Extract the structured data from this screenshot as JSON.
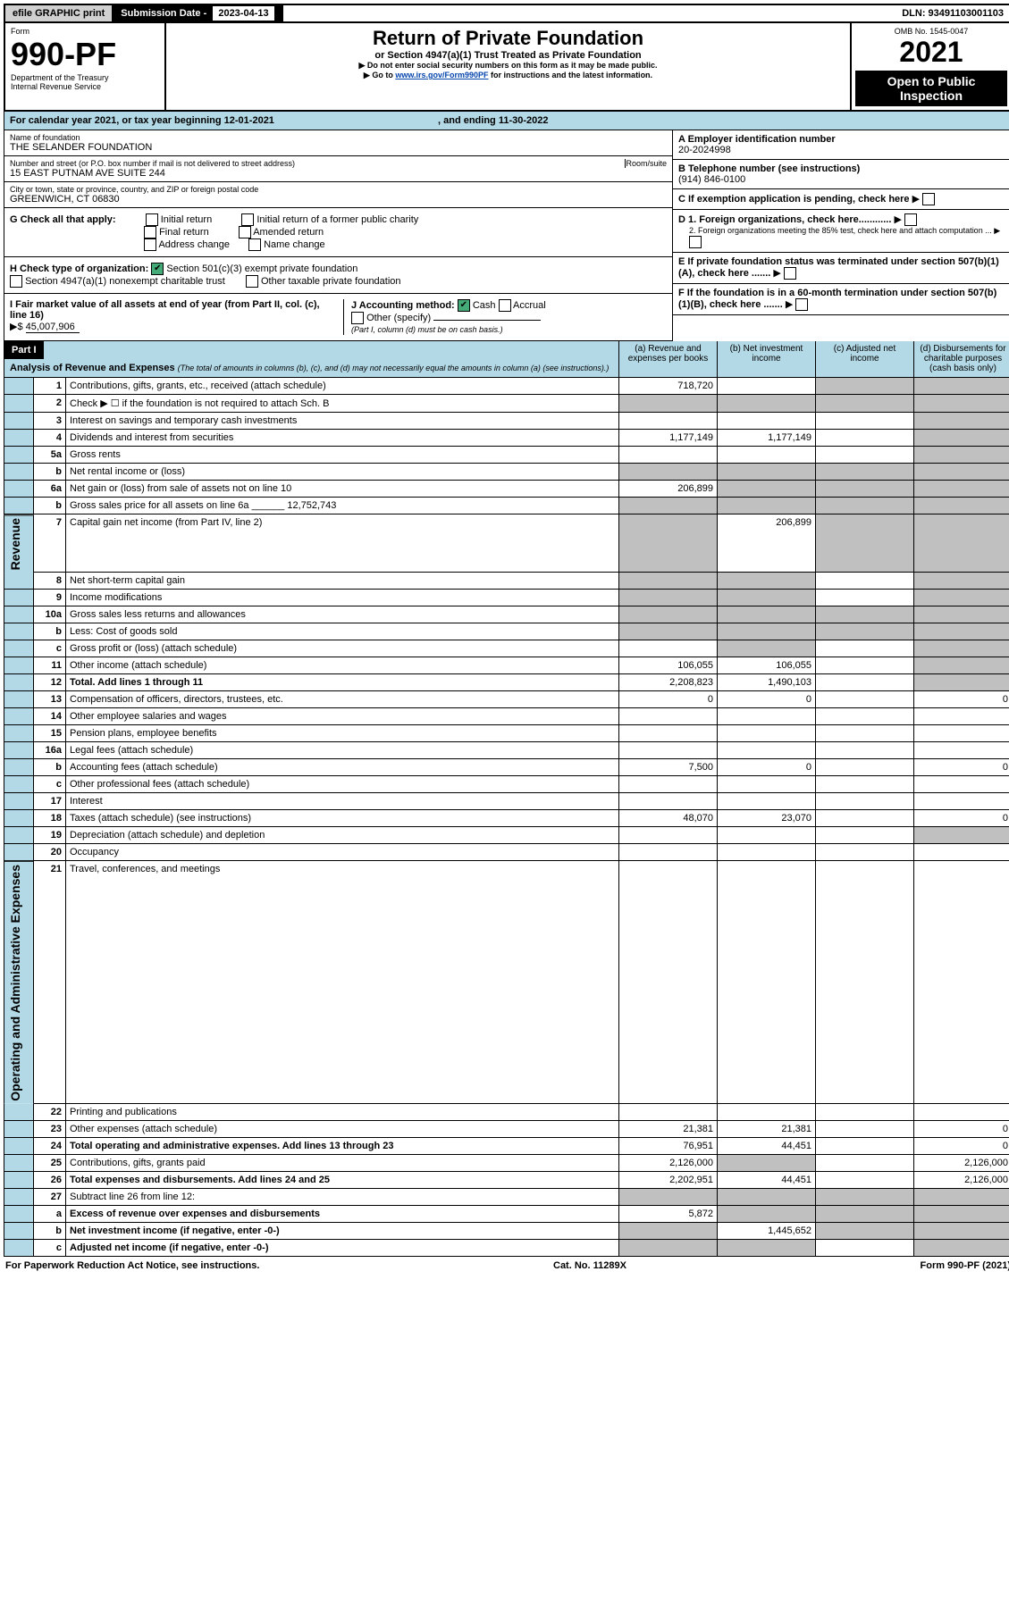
{
  "top_bar": {
    "efile": "efile GRAPHIC print",
    "sub_label": "Submission Date - ",
    "sub_date": "2023-04-13",
    "dln": "DLN: 93491103001103"
  },
  "header": {
    "form_word": "Form",
    "form_no": "990-PF",
    "dept1": "Department of the Treasury",
    "dept2": "Internal Revenue Service",
    "title": "Return of Private Foundation",
    "subtitle": "or Section 4947(a)(1) Trust Treated as Private Foundation",
    "note1": "▶ Do not enter social security numbers on this form as it may be made public.",
    "note2_pre": "▶ Go to ",
    "note2_link": "www.irs.gov/Form990PF",
    "note2_post": " for instructions and the latest information.",
    "omb": "OMB No. 1545-0047",
    "year": "2021",
    "open": "Open to Public Inspection"
  },
  "calendar": {
    "pre": "For calendar year 2021, or tax year beginning ",
    "begin": "12-01-2021",
    "mid": ", and ending ",
    "end": "11-30-2022"
  },
  "foundation": {
    "name_label": "Name of foundation",
    "name": "THE SELANDER FOUNDATION",
    "addr_label": "Number and street (or P.O. box number if mail is not delivered to street address)",
    "addr": "15 EAST PUTNAM AVE SUITE 244",
    "room_label": "Room/suite",
    "city_label": "City or town, state or province, country, and ZIP or foreign postal code",
    "city": "GREENWICH, CT  06830"
  },
  "rightcol": {
    "A_label": "A Employer identification number",
    "A_val": "20-2024998",
    "B_label": "B Telephone number (see instructions)",
    "B_val": "(914) 846-0100",
    "C_label": "C If exemption application is pending, check here",
    "D1": "D 1. Foreign organizations, check here............",
    "D2": "2. Foreign organizations meeting the 85% test, check here and attach computation ...",
    "E": "E If private foundation status was terminated under section 507(b)(1)(A), check here .......",
    "F": "F If the foundation is in a 60-month termination under section 507(b)(1)(B), check here ......."
  },
  "G": {
    "label": "G Check all that apply:",
    "opts": [
      "Initial return",
      "Final return",
      "Address change",
      "Initial return of a former public charity",
      "Amended return",
      "Name change"
    ]
  },
  "H": {
    "label": "H Check type of organization:",
    "o1": "Section 501(c)(3) exempt private foundation",
    "o2": "Section 4947(a)(1) nonexempt charitable trust",
    "o3": "Other taxable private foundation"
  },
  "I": {
    "label": "I Fair market value of all assets at end of year (from Part II, col. (c), line 16)",
    "arrow": "▶$",
    "val": "45,007,906"
  },
  "J": {
    "label": "J Accounting method:",
    "cash": "Cash",
    "accrual": "Accrual",
    "other": "Other (specify)",
    "note": "(Part I, column (d) must be on cash basis.)"
  },
  "partI": {
    "num": "Part I",
    "title": "Analysis of Revenue and Expenses",
    "sub": "(The total of amounts in columns (b), (c), and (d) may not necessarily equal the amounts in column (a) (see instructions).)",
    "cols": {
      "a": "(a) Revenue and expenses per books",
      "b": "(b) Net investment income",
      "c": "(c) Adjusted net income",
      "d": "(d) Disbursements for charitable purposes (cash basis only)"
    }
  },
  "revenue_label": "Revenue",
  "opex_label": "Operating and Administrative Expenses",
  "rows": [
    {
      "n": "1",
      "desc": "Contributions, gifts, grants, etc., received (attach schedule)",
      "a": "718,720",
      "b": "",
      "c": "g",
      "d": "g"
    },
    {
      "n": "2",
      "desc": "Check ▶ ☐ if the foundation is not required to attach Sch. B",
      "a": "g",
      "b": "g",
      "c": "g",
      "d": "g"
    },
    {
      "n": "3",
      "desc": "Interest on savings and temporary cash investments",
      "a": "",
      "b": "",
      "c": "",
      "d": "g"
    },
    {
      "n": "4",
      "desc": "Dividends and interest from securities",
      "a": "1,177,149",
      "b": "1,177,149",
      "c": "",
      "d": "g"
    },
    {
      "n": "5a",
      "desc": "Gross rents",
      "a": "",
      "b": "",
      "c": "",
      "d": "g"
    },
    {
      "n": "b",
      "desc": "Net rental income or (loss)",
      "a": "g",
      "b": "g",
      "c": "g",
      "d": "g"
    },
    {
      "n": "6a",
      "desc": "Net gain or (loss) from sale of assets not on line 10",
      "a": "206,899",
      "b": "g",
      "c": "g",
      "d": "g"
    },
    {
      "n": "b",
      "desc": "Gross sales price for all assets on line 6a ______ 12,752,743",
      "a": "g",
      "b": "g",
      "c": "g",
      "d": "g"
    },
    {
      "n": "7",
      "desc": "Capital gain net income (from Part IV, line 2)",
      "a": "g",
      "b": "206,899",
      "c": "g",
      "d": "g"
    },
    {
      "n": "8",
      "desc": "Net short-term capital gain",
      "a": "g",
      "b": "g",
      "c": "",
      "d": "g"
    },
    {
      "n": "9",
      "desc": "Income modifications",
      "a": "g",
      "b": "g",
      "c": "",
      "d": "g"
    },
    {
      "n": "10a",
      "desc": "Gross sales less returns and allowances",
      "a": "g",
      "b": "g",
      "c": "g",
      "d": "g"
    },
    {
      "n": "b",
      "desc": "Less: Cost of goods sold",
      "a": "g",
      "b": "g",
      "c": "g",
      "d": "g"
    },
    {
      "n": "c",
      "desc": "Gross profit or (loss) (attach schedule)",
      "a": "",
      "b": "g",
      "c": "",
      "d": "g"
    },
    {
      "n": "11",
      "desc": "Other income (attach schedule)",
      "a": "106,055",
      "b": "106,055",
      "c": "",
      "d": "g"
    },
    {
      "n": "12",
      "desc": "Total. Add lines 1 through 11",
      "a": "2,208,823",
      "b": "1,490,103",
      "c": "",
      "d": "g",
      "bold": true
    }
  ],
  "oprows": [
    {
      "n": "13",
      "desc": "Compensation of officers, directors, trustees, etc.",
      "a": "0",
      "b": "0",
      "c": "",
      "d": "0"
    },
    {
      "n": "14",
      "desc": "Other employee salaries and wages",
      "a": "",
      "b": "",
      "c": "",
      "d": ""
    },
    {
      "n": "15",
      "desc": "Pension plans, employee benefits",
      "a": "",
      "b": "",
      "c": "",
      "d": ""
    },
    {
      "n": "16a",
      "desc": "Legal fees (attach schedule)",
      "a": "",
      "b": "",
      "c": "",
      "d": ""
    },
    {
      "n": "b",
      "desc": "Accounting fees (attach schedule)",
      "a": "7,500",
      "b": "0",
      "c": "",
      "d": "0"
    },
    {
      "n": "c",
      "desc": "Other professional fees (attach schedule)",
      "a": "",
      "b": "",
      "c": "",
      "d": ""
    },
    {
      "n": "17",
      "desc": "Interest",
      "a": "",
      "b": "",
      "c": "",
      "d": ""
    },
    {
      "n": "18",
      "desc": "Taxes (attach schedule) (see instructions)",
      "a": "48,070",
      "b": "23,070",
      "c": "",
      "d": "0"
    },
    {
      "n": "19",
      "desc": "Depreciation (attach schedule) and depletion",
      "a": "",
      "b": "",
      "c": "",
      "d": "g"
    },
    {
      "n": "20",
      "desc": "Occupancy",
      "a": "",
      "b": "",
      "c": "",
      "d": ""
    },
    {
      "n": "21",
      "desc": "Travel, conferences, and meetings",
      "a": "",
      "b": "",
      "c": "",
      "d": ""
    },
    {
      "n": "22",
      "desc": "Printing and publications",
      "a": "",
      "b": "",
      "c": "",
      "d": ""
    },
    {
      "n": "23",
      "desc": "Other expenses (attach schedule)",
      "a": "21,381",
      "b": "21,381",
      "c": "",
      "d": "0"
    },
    {
      "n": "24",
      "desc": "Total operating and administrative expenses. Add lines 13 through 23",
      "a": "76,951",
      "b": "44,451",
      "c": "",
      "d": "0",
      "bold": true
    },
    {
      "n": "25",
      "desc": "Contributions, gifts, grants paid",
      "a": "2,126,000",
      "b": "g",
      "c": "",
      "d": "2,126,000"
    },
    {
      "n": "26",
      "desc": "Total expenses and disbursements. Add lines 24 and 25",
      "a": "2,202,951",
      "b": "44,451",
      "c": "",
      "d": "2,126,000",
      "bold": true
    },
    {
      "n": "27",
      "desc": "Subtract line 26 from line 12:",
      "a": "g",
      "b": "g",
      "c": "g",
      "d": "g"
    },
    {
      "n": "a",
      "desc": "Excess of revenue over expenses and disbursements",
      "a": "5,872",
      "b": "g",
      "c": "g",
      "d": "g",
      "bold": true
    },
    {
      "n": "b",
      "desc": "Net investment income (if negative, enter -0-)",
      "a": "g",
      "b": "1,445,652",
      "c": "g",
      "d": "g",
      "bold": true
    },
    {
      "n": "c",
      "desc": "Adjusted net income (if negative, enter -0-)",
      "a": "g",
      "b": "g",
      "c": "",
      "d": "g",
      "bold": true
    }
  ],
  "footer": {
    "left": "For Paperwork Reduction Act Notice, see instructions.",
    "mid": "Cat. No. 11289X",
    "right": "Form 990-PF (2021)"
  },
  "colors": {
    "blue_bg": "#b3d9e6",
    "grey_bg": "#c0c0c0",
    "link": "#0645ad"
  }
}
